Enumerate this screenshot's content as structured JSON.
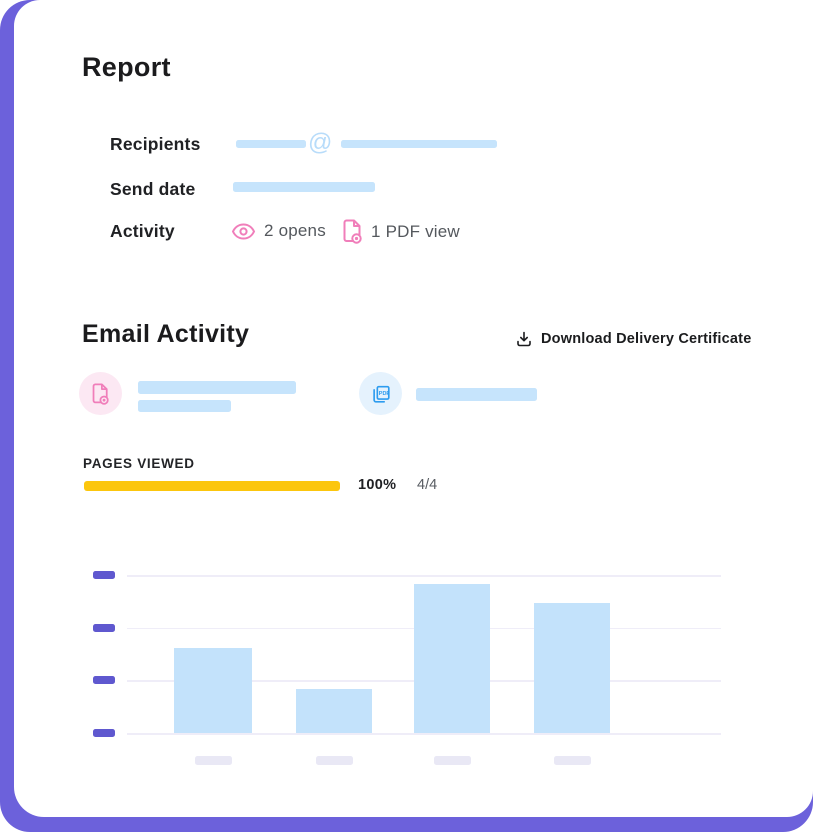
{
  "report": {
    "title": "Report",
    "at_symbol": "@",
    "fields": [
      {
        "label": "Recipients"
      },
      {
        "label": "Send date"
      },
      {
        "label": "Activity",
        "opens_text": "2 opens",
        "pdf_views_text": "1 PDF view"
      }
    ]
  },
  "email_activity": {
    "title": "Email Activity",
    "download_label": "Download Delivery Certificate",
    "badges": [
      {
        "icon": "document-eye-icon",
        "color": "#F07EBA",
        "bg": "#FCE8F3"
      },
      {
        "icon": "pdf-pages-icon",
        "color": "#2D9CEF",
        "bg": "#E5F2FD"
      }
    ]
  },
  "pages_viewed": {
    "label": "PAGES VIEWED",
    "percent": "100%",
    "fraction": "4/4",
    "bar_color": "#FCC60D"
  },
  "chart_data": {
    "type": "bar",
    "title": "",
    "note": "skeleton chart - y-axis ticks and x-axis category labels are placeholder blocks, no numeric labels visible",
    "categories": [
      "",
      "",
      "",
      ""
    ],
    "values_percent_of_axis": [
      54,
      28,
      94,
      82
    ],
    "gridline_count": 4,
    "bar_color": "#C3E2FB",
    "ytick_color": "#5F58CF",
    "gridline_color": "#EFEDF8",
    "xlabel_placeholder_color": "#E9E8F5",
    "legend": "none",
    "grid": "horizontal"
  },
  "colors": {
    "backdrop": "#6C61DB",
    "card": "#FFFFFF",
    "placeholder_blue": "#C6E4FC",
    "pink_accent": "#F07EBA",
    "blue_accent": "#2D9CEF",
    "text_dark": "#1B1B1D",
    "text_gray": "#54585D",
    "progress_yellow": "#FCC60D"
  }
}
